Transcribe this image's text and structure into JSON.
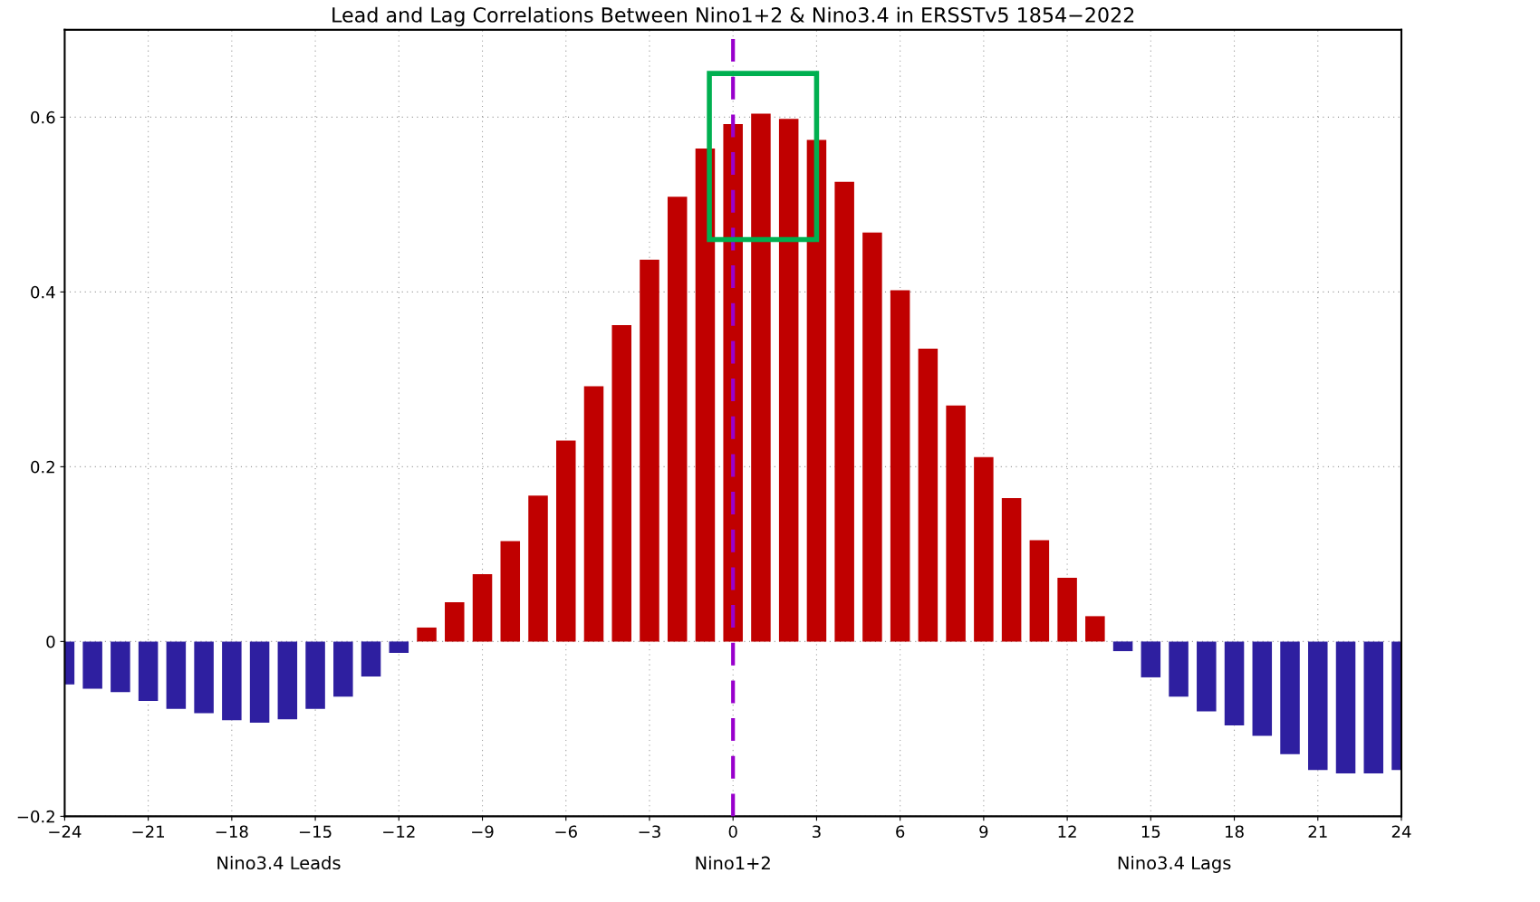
{
  "chart_data": {
    "type": "bar",
    "title": "Lead and Lag Correlations Between Nino1+2 & Nino3.4 in ERSSTv5 1854−2022",
    "xlabel": "Nino1+2",
    "annotations": [
      "Nino3.4 Leads",
      "Nino3.4 Lags"
    ],
    "x": [
      -24,
      -23,
      -22,
      -21,
      -20,
      -19,
      -18,
      -17,
      -16,
      -15,
      -14,
      -13,
      -12,
      -11,
      -10,
      -9,
      -8,
      -7,
      -6,
      -5,
      -4,
      -3,
      -2,
      -1,
      0,
      1,
      2,
      3,
      4,
      5,
      6,
      7,
      8,
      9,
      10,
      11,
      12,
      13,
      14,
      15,
      16,
      17,
      18,
      19,
      20,
      21,
      22,
      23,
      24
    ],
    "values": [
      -0.049,
      -0.054,
      -0.058,
      -0.068,
      -0.077,
      -0.082,
      -0.09,
      -0.093,
      -0.089,
      -0.077,
      -0.063,
      -0.04,
      -0.013,
      0.016,
      0.045,
      0.077,
      0.115,
      0.167,
      0.23,
      0.292,
      0.362,
      0.437,
      0.509,
      0.564,
      0.592,
      0.604,
      0.598,
      0.574,
      0.526,
      0.468,
      0.402,
      0.335,
      0.27,
      0.211,
      0.164,
      0.116,
      0.073,
      0.029,
      -0.011,
      -0.041,
      -0.063,
      -0.08,
      -0.096,
      -0.108,
      -0.129,
      -0.147,
      -0.151,
      -0.151,
      -0.147
    ],
    "colors": [
      "#2e1fa0",
      "#2e1fa0",
      "#2e1fa0",
      "#2e1fa0",
      "#2e1fa0",
      "#2e1fa0",
      "#2e1fa0",
      "#2e1fa0",
      "#2e1fa0",
      "#2e1fa0",
      "#2e1fa0",
      "#2e1fa0",
      "#2e1fa0",
      "#c00000",
      "#c00000",
      "#c00000",
      "#c00000",
      "#c00000",
      "#c00000",
      "#c00000",
      "#c00000",
      "#c00000",
      "#c00000",
      "#c00000",
      "#c00000",
      "#c00000",
      "#c00000",
      "#c00000",
      "#c00000",
      "#c00000",
      "#c00000",
      "#c00000",
      "#c00000",
      "#c00000",
      "#c00000",
      "#c00000",
      "#c00000",
      "#c00000",
      "#2e1fa0",
      "#2e1fa0",
      "#2e1fa0",
      "#2e1fa0",
      "#2e1fa0",
      "#2e1fa0",
      "#2e1fa0",
      "#2e1fa0",
      "#2e1fa0",
      "#2e1fa0",
      "#2e1fa0"
    ],
    "xlim": [
      -24,
      24
    ],
    "xticks": [
      {
        "value": -24,
        "label": "−24"
      },
      {
        "value": -21,
        "label": "−21"
      },
      {
        "value": -18,
        "label": "−18"
      },
      {
        "value": -15,
        "label": "−15"
      },
      {
        "value": -12,
        "label": "−12"
      },
      {
        "value": -9,
        "label": "−9"
      },
      {
        "value": -6,
        "label": "−6"
      },
      {
        "value": -3,
        "label": "−3"
      },
      0,
      3,
      6,
      9,
      12,
      15,
      18,
      21,
      24
    ],
    "ylim": [
      -0.2,
      0.7
    ],
    "yticks": [
      {
        "value": -0.2,
        "label": "−0.2"
      },
      0,
      0.2,
      0.4,
      0.6
    ],
    "grid": true,
    "ref_lines": [
      {
        "axis": "x",
        "value": 0,
        "color": "#9900cc",
        "line_style": "dashed"
      }
    ]
  }
}
